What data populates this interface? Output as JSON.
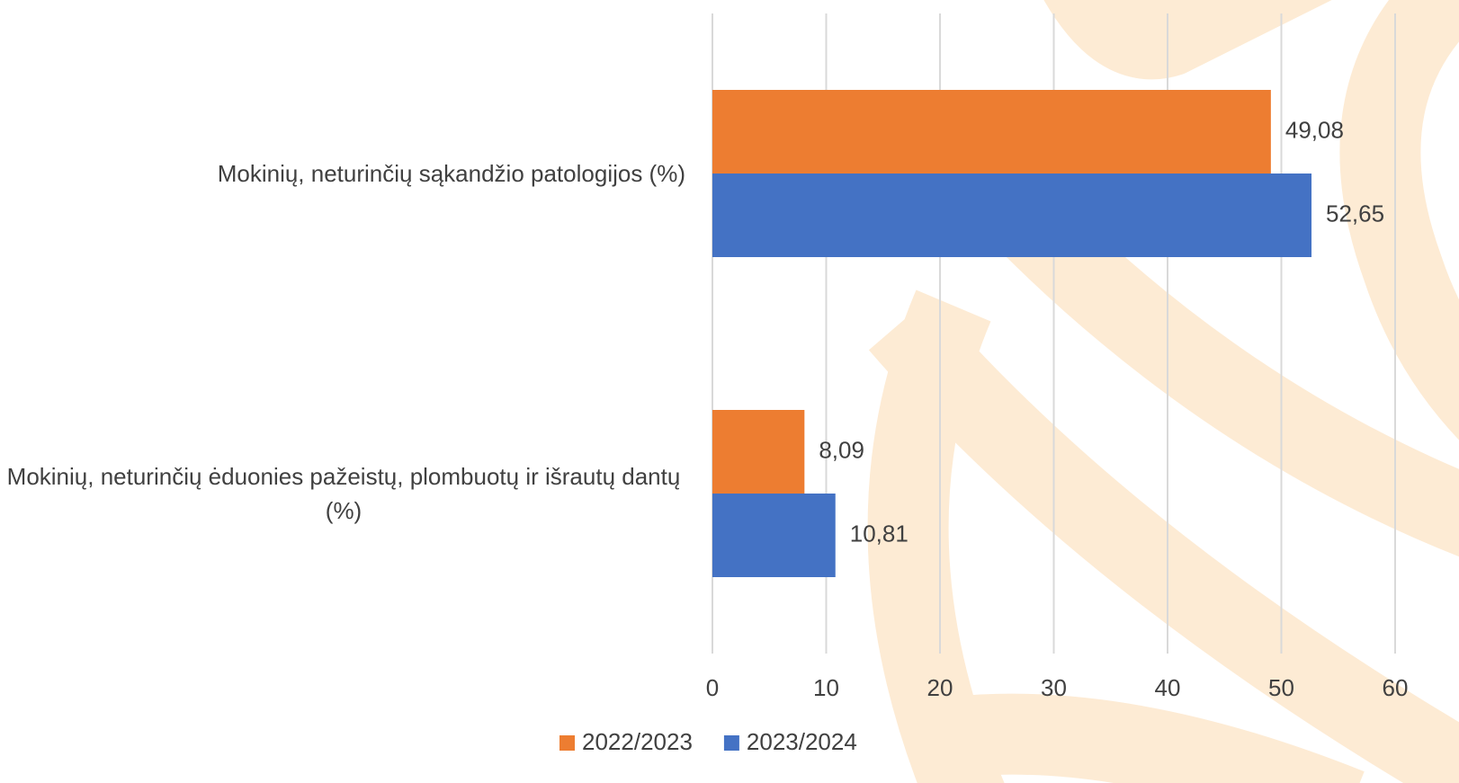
{
  "chart_data": {
    "type": "bar",
    "orientation": "horizontal",
    "categories": [
      "Mokinių, neturinčių sąkandžio patologijos (%)",
      "Mokinių, neturinčių ėduonies pažeistų, plombuotų ir išrautų dantų (%)"
    ],
    "series": [
      {
        "name": "2022/2023",
        "color": "#ed7d31",
        "values": [
          49.08,
          8.09
        ],
        "value_labels": [
          "49,08",
          "8,09"
        ]
      },
      {
        "name": "2023/2024",
        "color": "#4472c4",
        "values": [
          52.65,
          10.81
        ],
        "value_labels": [
          "52,65",
          "10,81"
        ]
      }
    ],
    "xlim": [
      0,
      60
    ],
    "xticks": [
      0,
      10,
      20,
      30,
      40,
      50,
      60
    ],
    "grid": true,
    "legend": "bottom"
  }
}
